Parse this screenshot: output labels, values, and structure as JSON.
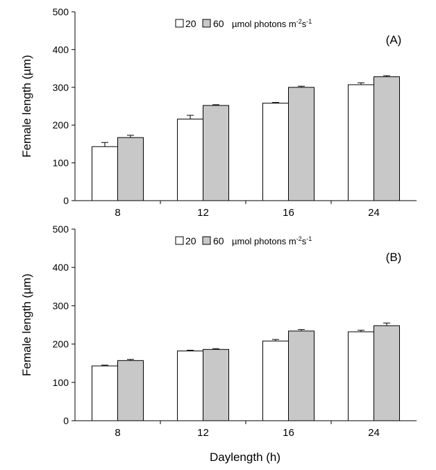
{
  "figure": {
    "xlabel": "Daylength (h)"
  },
  "colors": {
    "series_20": "#ffffff",
    "series_60": "#c8c8c8",
    "stroke": "#000000"
  },
  "chart_data": [
    {
      "type": "bar",
      "panel_label": "(A)",
      "ylabel": "Female length (µm)",
      "xlabel": "",
      "categories": [
        "8",
        "12",
        "16",
        "24"
      ],
      "ylim": [
        0,
        500
      ],
      "yticks": [
        0,
        100,
        200,
        300,
        400,
        500
      ],
      "legend": {
        "placement": "top-center",
        "items": [
          "20",
          "60"
        ],
        "unit_prefix": "µmol photons m",
        "unit_exp1": "-2",
        "unit_mid": "s",
        "unit_exp2": "-1"
      },
      "series": [
        {
          "name": "20",
          "values": [
            143,
            216,
            258,
            307
          ],
          "errors": [
            11,
            10,
            2,
            5
          ]
        },
        {
          "name": "60",
          "values": [
            167,
            252,
            300,
            328
          ],
          "errors": [
            6,
            2,
            3,
            3
          ]
        }
      ]
    },
    {
      "type": "bar",
      "panel_label": "(B)",
      "ylabel": "Female length (µm)",
      "xlabel": "Daylength (h)",
      "categories": [
        "8",
        "12",
        "16",
        "24"
      ],
      "ylim": [
        0,
        500
      ],
      "yticks": [
        0,
        100,
        200,
        300,
        400,
        500
      ],
      "legend": {
        "placement": "top-center",
        "items": [
          "20",
          "60"
        ],
        "unit_prefix": "µmol photons m",
        "unit_exp1": "-2",
        "unit_mid": "s",
        "unit_exp2": "-1"
      },
      "series": [
        {
          "name": "20",
          "values": [
            143,
            182,
            208,
            232
          ],
          "errors": [
            2,
            2,
            4,
            4
          ]
        },
        {
          "name": "60",
          "values": [
            157,
            186,
            234,
            248
          ],
          "errors": [
            3,
            2,
            4,
            7
          ]
        }
      ]
    }
  ]
}
